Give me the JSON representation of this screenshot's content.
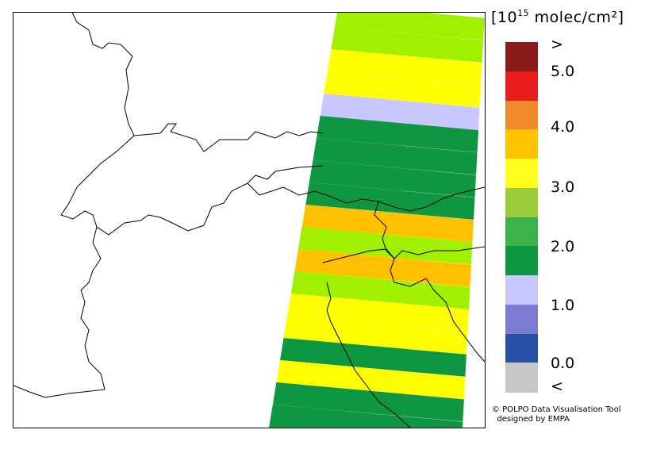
{
  "legend": {
    "unit_prefix": "[10",
    "unit_exp": "15",
    "unit_suffix": " molec/cm²]",
    "labels": [
      ">",
      "5.0",
      "4.0",
      "3.0",
      "2.0",
      "1.0",
      "0.0",
      "<"
    ],
    "colors": [
      "#8b1a1a",
      "#e81e1e",
      "#f08a2a",
      "#ffc300",
      "#ffff1e",
      "#9ccd3c",
      "#3cb44b",
      "#0f9640",
      "#c8c8ff",
      "#7b7bd0",
      "#2850a6",
      "#c8c8c8"
    ]
  },
  "map": {
    "band_colors": {
      "green_light": "#a0f000",
      "green_dark": "#0f9640",
      "yellow": "#ffff00",
      "orange": "#ffc000",
      "lavender": "#c8c8ff"
    }
  },
  "credits": {
    "line1": "© POLPO Data Visualisation Tool",
    "line2": "  designed by EMPA"
  }
}
